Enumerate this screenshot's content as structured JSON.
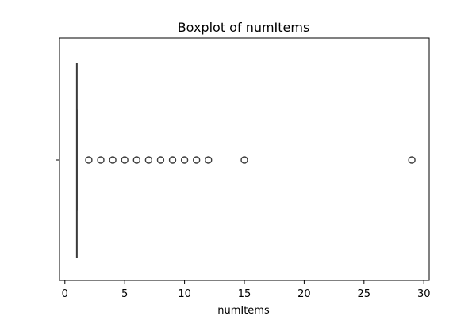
{
  "chart_data": {
    "type": "box",
    "title": "Boxplot of numItems",
    "xlabel": "numItems",
    "ylabel": "",
    "orientation": "horizontal",
    "xlim": [
      -0.45,
      30.45
    ],
    "x_ticks": [
      0,
      5,
      10,
      15,
      20,
      25,
      30
    ],
    "grid": false,
    "legend": "none",
    "box": {
      "whisker_low": 1,
      "q1": 1,
      "median": 1,
      "q3": 1,
      "whisker_high": 1
    },
    "outliers": [
      2,
      3,
      4,
      5,
      6,
      7,
      8,
      9,
      10,
      11,
      12,
      15,
      29
    ],
    "box_color": "#3b3b3b",
    "outlier_color": "#3b3b3b"
  }
}
